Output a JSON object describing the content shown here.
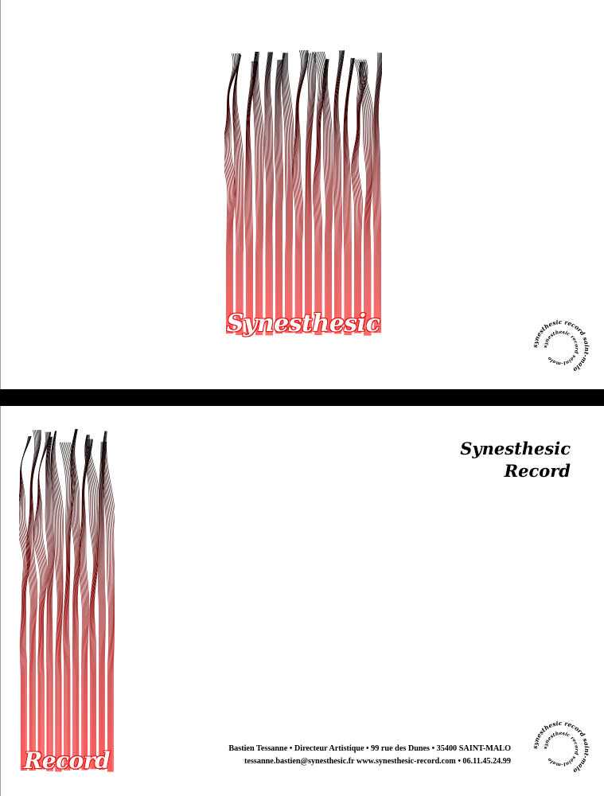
{
  "front": {
    "art_word": "Synesthesic",
    "stamp_text": "synesthesic record saint-malo"
  },
  "back": {
    "art_word": "Record",
    "brand_line1": "Synesthesic",
    "brand_line2": "Record",
    "contact_line1": "Bastien Tessanne • Directeur Artistique • 99 rue des Dunes • 35400 SAINT-MALO",
    "contact_line2": "tessanne.bastien@synesthesic.fr www.synesthesic-record.com • 06.11.45.24.99",
    "stamp_text": "synesthesic record saint-malo"
  },
  "colors": {
    "art_top": "#000000",
    "art_bottom": "#ff0000",
    "divider": "#000000"
  }
}
